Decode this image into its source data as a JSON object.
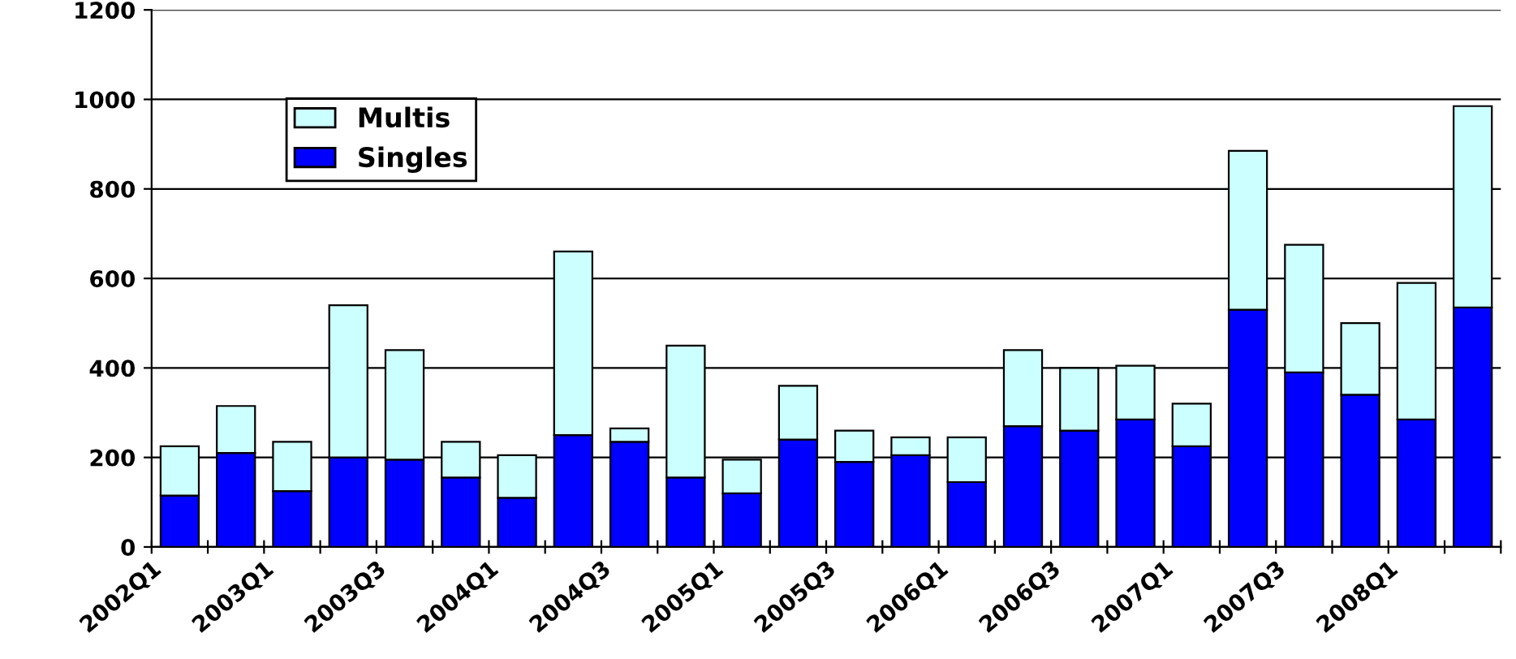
{
  "chart_data": {
    "type": "bar",
    "stacked": true,
    "categories": [
      "2002Q1",
      null,
      "2003Q1",
      null,
      "2003Q3",
      null,
      "2004Q1",
      null,
      "2004Q3",
      null,
      "2005Q1",
      null,
      "2005Q3",
      null,
      "2006Q1",
      null,
      "2006Q3",
      null,
      "2007Q1",
      null,
      "2007Q3",
      null,
      "2008Q1",
      null
    ],
    "series": [
      {
        "name": "Singles",
        "color": "#0000ff",
        "values": [
          115,
          210,
          125,
          200,
          195,
          155,
          110,
          250,
          235,
          155,
          120,
          240,
          190,
          205,
          145,
          270,
          260,
          285,
          225,
          530,
          390,
          340,
          285,
          535
        ]
      },
      {
        "name": "Multis",
        "color": "#ccffff",
        "values": [
          110,
          105,
          110,
          340,
          245,
          80,
          95,
          410,
          30,
          295,
          75,
          120,
          70,
          40,
          100,
          170,
          140,
          120,
          95,
          355,
          285,
          160,
          305,
          450
        ]
      }
    ],
    "ylim": [
      0,
      1200
    ],
    "yticks": [
      0,
      200,
      400,
      600,
      800,
      1000,
      1200
    ],
    "grid": "y",
    "legend": "top left"
  }
}
